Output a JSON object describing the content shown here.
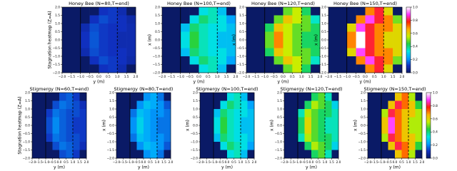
{
  "chart_data": {
    "type": "heatmap",
    "xlabel": "y (m)",
    "xlim": [
      -2,
      2
    ],
    "ylim": [
      -2,
      2
    ],
    "xticks": [
      {
        "value": -2,
        "label": "−2.0"
      },
      {
        "value": -1.5,
        "label": "−1.5"
      },
      {
        "value": -1,
        "label": "−1.0"
      },
      {
        "value": -0.5,
        "label": "−0.5"
      },
      {
        "value": 0,
        "label": "0.0"
      },
      {
        "value": 0.5,
        "label": "0.5"
      },
      {
        "value": 1,
        "label": "1.0"
      },
      {
        "value": 1.5,
        "label": "1.5"
      },
      {
        "value": 2,
        "label": "2.0"
      }
    ],
    "yticks": [
      {
        "value": -2,
        "label": "−2.0"
      },
      {
        "value": -1.5,
        "label": "−1.5"
      },
      {
        "value": -1,
        "label": "−1.0"
      },
      {
        "value": -0.5,
        "label": "−0.5"
      },
      {
        "value": 0,
        "label": "0.0"
      },
      {
        "value": 0.5,
        "label": "0.5"
      },
      {
        "value": 1,
        "label": "1.0"
      },
      {
        "value": 1.5,
        "label": "1.5"
      },
      {
        "value": 2,
        "label": "2.0"
      }
    ],
    "clim": [
      0,
      1
    ],
    "cticks": [
      {
        "value": 0,
        "label": "0.0"
      },
      {
        "value": 0.2,
        "label": "0.2"
      },
      {
        "value": 0.4,
        "label": "0.4"
      },
      {
        "value": 0.6,
        "label": "0.6"
      },
      {
        "value": 0.8,
        "label": "0.8"
      },
      {
        "value": 1,
        "label": "1.0"
      }
    ],
    "colormap": [
      "#0a1a66",
      "#1030c0",
      "#00a0ff",
      "#00e8e0",
      "#20d040",
      "#c8f000",
      "#ffb000",
      "#ff2000",
      "#ff30ff",
      "#ffffff"
    ],
    "vlines": [
      {
        "value": -1,
        "style": "solid"
      },
      {
        "value": 1,
        "style": "dashed"
      }
    ],
    "panels": [
      {
        "title": "Honey Bee (N=80,T=end)",
        "ylabel": "Stagnation heatmap (Z=A)",
        "values": [
          [
            0,
            0,
            0,
            0,
            0.11,
            0.12,
            0.09,
            0
          ],
          [
            0,
            0,
            0,
            0.11,
            0.14,
            0.12,
            0.11,
            0.08
          ],
          [
            0,
            0,
            0.09,
            0.14,
            0.12,
            0.11,
            0.11,
            0.09
          ],
          [
            0,
            0,
            0.11,
            0.15,
            0.12,
            0.11,
            0.09,
            0.09
          ],
          [
            0,
            0,
            0.11,
            0.15,
            0.12,
            0.11,
            0.09,
            0.09
          ],
          [
            0,
            0,
            0.09,
            0.14,
            0.12,
            0.11,
            0.11,
            0.09
          ],
          [
            0,
            0,
            0,
            0.11,
            0.14,
            0.12,
            0.11,
            0.08
          ],
          [
            0,
            0,
            0,
            0,
            0.11,
            0.12,
            0.09,
            0
          ]
        ]
      },
      {
        "title": "Honey Bee (N=100,T=end)",
        "ylabel": "x (m)",
        "values": [
          [
            0,
            0,
            0,
            0,
            0.32,
            0.36,
            0.27,
            0
          ],
          [
            0,
            0,
            0,
            0.32,
            0.41,
            0.36,
            0.32,
            0.23
          ],
          [
            0,
            0,
            0.27,
            0.41,
            0.36,
            0.32,
            0.32,
            0.27
          ],
          [
            0,
            0,
            0.32,
            0.45,
            0.36,
            0.32,
            0.27,
            0.27
          ],
          [
            0,
            0,
            0.32,
            0.45,
            0.36,
            0.32,
            0.27,
            0.27
          ],
          [
            0,
            0,
            0.27,
            0.41,
            0.36,
            0.32,
            0.32,
            0.27
          ],
          [
            0,
            0,
            0,
            0.32,
            0.41,
            0.36,
            0.32,
            0.23
          ],
          [
            0,
            0,
            0,
            0,
            0.32,
            0.36,
            0.27,
            0
          ]
        ]
      },
      {
        "title": "Honey Bee (N=120,T=end)",
        "ylabel": "x (m)",
        "values": [
          [
            0,
            0,
            0,
            0,
            0.49,
            0.56,
            0.42,
            0
          ],
          [
            0,
            0,
            0,
            0.49,
            0.63,
            0.56,
            0.49,
            0.35
          ],
          [
            0,
            0,
            0.42,
            0.63,
            0.56,
            0.49,
            0.49,
            0.42
          ],
          [
            0,
            0,
            0.49,
            0.7,
            0.56,
            0.49,
            0.42,
            0.42
          ],
          [
            0,
            0,
            0.49,
            0.7,
            0.56,
            0.49,
            0.42,
            0.42
          ],
          [
            0,
            0,
            0.42,
            0.63,
            0.56,
            0.49,
            0.49,
            0.42
          ],
          [
            0,
            0,
            0,
            0.49,
            0.63,
            0.56,
            0.49,
            0.35
          ],
          [
            0,
            0,
            0,
            0,
            0.49,
            0.56,
            0.42,
            0
          ]
        ]
      },
      {
        "title": "Honey Bee (N=150,T=end)",
        "ylabel": "x (m)",
        "colorbar": true,
        "values": [
          [
            0,
            0,
            0,
            0,
            0.7,
            0.8,
            0.6,
            0
          ],
          [
            0,
            0,
            0,
            0.7,
            0.9,
            0.8,
            0.7,
            0.5
          ],
          [
            0,
            0,
            0.6,
            0.9,
            0.8,
            0.7,
            0.7,
            0.6
          ],
          [
            0,
            0,
            0.7,
            1,
            0.8,
            0.7,
            0.6,
            0.6
          ],
          [
            0,
            0,
            0.7,
            1,
            0.8,
            0.7,
            0.6,
            0.6
          ],
          [
            0,
            0,
            0.6,
            0.9,
            0.8,
            0.7,
            0.7,
            0.6
          ],
          [
            0,
            0,
            0,
            0.7,
            0.9,
            0.8,
            0.7,
            0.5
          ],
          [
            0,
            0,
            0,
            0,
            0.7,
            0.8,
            0.6,
            0
          ]
        ]
      },
      {
        "title": "Stigmergy (N=60,T=end)",
        "ylabel": "Stagnation heatmap (Z=A)",
        "values": [
          [
            0,
            0,
            0,
            0,
            0.14,
            0.16,
            0.12,
            0
          ],
          [
            0,
            0,
            0,
            0.14,
            0.18,
            0.16,
            0.14,
            0.1
          ],
          [
            0,
            0,
            0.12,
            0.18,
            0.16,
            0.14,
            0.14,
            0.12
          ],
          [
            0,
            0,
            0.14,
            0.2,
            0.16,
            0.14,
            0.12,
            0.12
          ],
          [
            0,
            0,
            0.14,
            0.2,
            0.16,
            0.14,
            0.12,
            0.12
          ],
          [
            0,
            0,
            0.12,
            0.18,
            0.16,
            0.14,
            0.14,
            0.12
          ],
          [
            0,
            0,
            0,
            0.14,
            0.18,
            0.16,
            0.14,
            0.1
          ],
          [
            0,
            0,
            0,
            0,
            0.14,
            0.16,
            0.12,
            0
          ]
        ]
      },
      {
        "title": "Stigmergy (N=80,T=end)",
        "ylabel": "x (m)",
        "values": [
          [
            0,
            0,
            0,
            0,
            0.21,
            0.24,
            0.18,
            0
          ],
          [
            0,
            0,
            0,
            0.21,
            0.27,
            0.24,
            0.21,
            0.15
          ],
          [
            0,
            0,
            0.18,
            0.27,
            0.24,
            0.21,
            0.21,
            0.18
          ],
          [
            0,
            0,
            0.21,
            0.3,
            0.24,
            0.21,
            0.18,
            0.18
          ],
          [
            0,
            0,
            0.21,
            0.3,
            0.24,
            0.21,
            0.18,
            0.18
          ],
          [
            0,
            0,
            0.18,
            0.27,
            0.24,
            0.21,
            0.21,
            0.18
          ],
          [
            0,
            0,
            0,
            0.21,
            0.27,
            0.24,
            0.21,
            0.15
          ],
          [
            0,
            0,
            0,
            0,
            0.21,
            0.24,
            0.18,
            0
          ]
        ]
      },
      {
        "title": "Stigmergy (N=100,T=end)",
        "ylabel": "x (m)",
        "values": [
          [
            0,
            0,
            0,
            0,
            0.32,
            0.36,
            0.27,
            0
          ],
          [
            0,
            0,
            0,
            0.32,
            0.41,
            0.36,
            0.32,
            0.23
          ],
          [
            0,
            0,
            0.27,
            0.41,
            0.36,
            0.32,
            0.32,
            0.27
          ],
          [
            0,
            0,
            0.32,
            0.45,
            0.36,
            0.32,
            0.27,
            0.27
          ],
          [
            0,
            0,
            0.32,
            0.45,
            0.36,
            0.32,
            0.27,
            0.27
          ],
          [
            0,
            0,
            0.27,
            0.41,
            0.36,
            0.32,
            0.32,
            0.27
          ],
          [
            0,
            0,
            0,
            0.32,
            0.41,
            0.36,
            0.32,
            0.23
          ],
          [
            0,
            0,
            0,
            0,
            0.32,
            0.36,
            0.27,
            0
          ]
        ]
      },
      {
        "title": "Stigmergy (N=120,T=end)",
        "ylabel": "x (m)",
        "values": [
          [
            0,
            0,
            0,
            0,
            0.42,
            0.48,
            0.36,
            0
          ],
          [
            0,
            0,
            0,
            0.42,
            0.54,
            0.48,
            0.42,
            0.3
          ],
          [
            0,
            0,
            0.36,
            0.54,
            0.48,
            0.42,
            0.42,
            0.36
          ],
          [
            0,
            0,
            0.42,
            0.6,
            0.48,
            0.42,
            0.36,
            0.36
          ],
          [
            0,
            0,
            0.42,
            0.6,
            0.48,
            0.42,
            0.36,
            0.36
          ],
          [
            0,
            0,
            0.36,
            0.54,
            0.48,
            0.42,
            0.42,
            0.36
          ],
          [
            0,
            0,
            0,
            0.42,
            0.54,
            0.48,
            0.42,
            0.3
          ],
          [
            0,
            0,
            0,
            0,
            0.42,
            0.48,
            0.36,
            0
          ]
        ]
      },
      {
        "title": "Stigmergy (N=150,T=end)",
        "ylabel": "x (m)",
        "colorbar": true,
        "values": [
          [
            0,
            0,
            0,
            0,
            0.63,
            0.72,
            0.54,
            0
          ],
          [
            0,
            0,
            0,
            0.63,
            0.81,
            0.72,
            0.63,
            0.45
          ],
          [
            0,
            0,
            0.54,
            0.81,
            0.72,
            0.63,
            0.63,
            0.54
          ],
          [
            0,
            0,
            0.63,
            0.9,
            0.72,
            0.63,
            0.54,
            0.54
          ],
          [
            0,
            0,
            0.63,
            0.9,
            0.72,
            0.63,
            0.54,
            0.54
          ],
          [
            0,
            0,
            0.54,
            0.81,
            0.72,
            0.63,
            0.63,
            0.54
          ],
          [
            0,
            0,
            0,
            0.63,
            0.81,
            0.72,
            0.63,
            0.45
          ],
          [
            0,
            0,
            0,
            0,
            0.63,
            0.72,
            0.54,
            0
          ]
        ]
      }
    ]
  }
}
